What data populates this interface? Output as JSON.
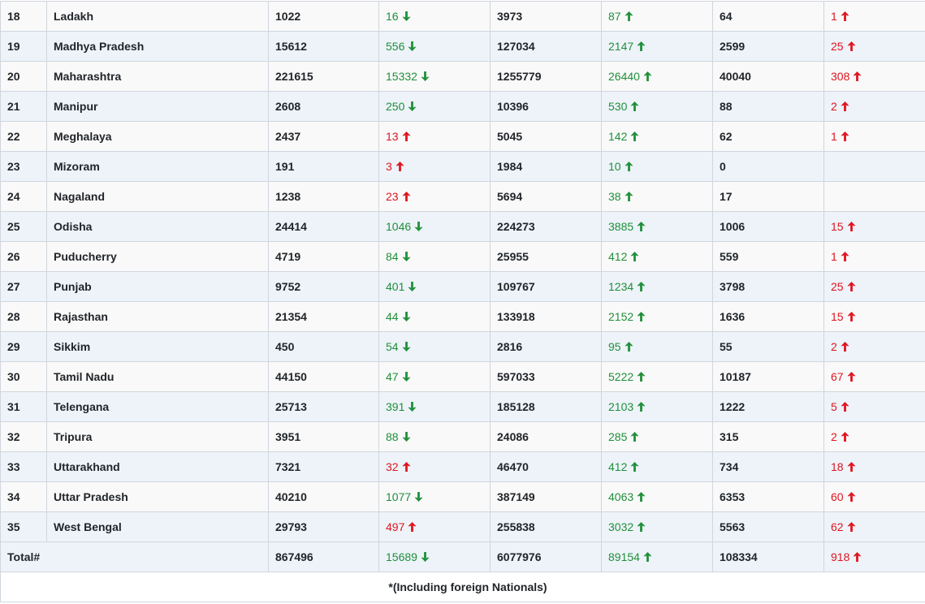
{
  "table": {
    "rows": [
      {
        "sno": "18",
        "state": "Ladakh",
        "active": "1022",
        "active_change": {
          "value": "16",
          "dir": "down"
        },
        "cured": "3973",
        "cured_change": {
          "value": "87",
          "dir": "up"
        },
        "deaths": "64",
        "deaths_change": {
          "value": "1",
          "dir": "up"
        }
      },
      {
        "sno": "19",
        "state": "Madhya Pradesh",
        "active": "15612",
        "active_change": {
          "value": "556",
          "dir": "down"
        },
        "cured": "127034",
        "cured_change": {
          "value": "2147",
          "dir": "up"
        },
        "deaths": "2599",
        "deaths_change": {
          "value": "25",
          "dir": "up"
        }
      },
      {
        "sno": "20",
        "state": "Maharashtra",
        "active": "221615",
        "active_change": {
          "value": "15332",
          "dir": "down"
        },
        "cured": "1255779",
        "cured_change": {
          "value": "26440",
          "dir": "up"
        },
        "deaths": "40040",
        "deaths_change": {
          "value": "308",
          "dir": "up"
        }
      },
      {
        "sno": "21",
        "state": "Manipur",
        "active": "2608",
        "active_change": {
          "value": "250",
          "dir": "down"
        },
        "cured": "10396",
        "cured_change": {
          "value": "530",
          "dir": "up"
        },
        "deaths": "88",
        "deaths_change": {
          "value": "2",
          "dir": "up"
        }
      },
      {
        "sno": "22",
        "state": "Meghalaya",
        "active": "2437",
        "active_change": {
          "value": "13",
          "dir": "up"
        },
        "cured": "5045",
        "cured_change": {
          "value": "142",
          "dir": "up"
        },
        "deaths": "62",
        "deaths_change": {
          "value": "1",
          "dir": "up"
        }
      },
      {
        "sno": "23",
        "state": "Mizoram",
        "active": "191",
        "active_change": {
          "value": "3",
          "dir": "up"
        },
        "cured": "1984",
        "cured_change": {
          "value": "10",
          "dir": "up"
        },
        "deaths": "0",
        "deaths_change": null
      },
      {
        "sno": "24",
        "state": "Nagaland",
        "active": "1238",
        "active_change": {
          "value": "23",
          "dir": "up"
        },
        "cured": "5694",
        "cured_change": {
          "value": "38",
          "dir": "up"
        },
        "deaths": "17",
        "deaths_change": null
      },
      {
        "sno": "25",
        "state": "Odisha",
        "active": "24414",
        "active_change": {
          "value": "1046",
          "dir": "down"
        },
        "cured": "224273",
        "cured_change": {
          "value": "3885",
          "dir": "up"
        },
        "deaths": "1006",
        "deaths_change": {
          "value": "15",
          "dir": "up"
        }
      },
      {
        "sno": "26",
        "state": "Puducherry",
        "active": "4719",
        "active_change": {
          "value": "84",
          "dir": "down"
        },
        "cured": "25955",
        "cured_change": {
          "value": "412",
          "dir": "up"
        },
        "deaths": "559",
        "deaths_change": {
          "value": "1",
          "dir": "up"
        }
      },
      {
        "sno": "27",
        "state": "Punjab",
        "active": "9752",
        "active_change": {
          "value": "401",
          "dir": "down"
        },
        "cured": "109767",
        "cured_change": {
          "value": "1234",
          "dir": "up"
        },
        "deaths": "3798",
        "deaths_change": {
          "value": "25",
          "dir": "up"
        }
      },
      {
        "sno": "28",
        "state": "Rajasthan",
        "active": "21354",
        "active_change": {
          "value": "44",
          "dir": "down"
        },
        "cured": "133918",
        "cured_change": {
          "value": "2152",
          "dir": "up"
        },
        "deaths": "1636",
        "deaths_change": {
          "value": "15",
          "dir": "up"
        }
      },
      {
        "sno": "29",
        "state": "Sikkim",
        "active": "450",
        "active_change": {
          "value": "54",
          "dir": "down"
        },
        "cured": "2816",
        "cured_change": {
          "value": "95",
          "dir": "up"
        },
        "deaths": "55",
        "deaths_change": {
          "value": "2",
          "dir": "up"
        }
      },
      {
        "sno": "30",
        "state": "Tamil Nadu",
        "active": "44150",
        "active_change": {
          "value": "47",
          "dir": "down"
        },
        "cured": "597033",
        "cured_change": {
          "value": "5222",
          "dir": "up"
        },
        "deaths": "10187",
        "deaths_change": {
          "value": "67",
          "dir": "up"
        }
      },
      {
        "sno": "31",
        "state": "Telengana",
        "active": "25713",
        "active_change": {
          "value": "391",
          "dir": "down"
        },
        "cured": "185128",
        "cured_change": {
          "value": "2103",
          "dir": "up"
        },
        "deaths": "1222",
        "deaths_change": {
          "value": "5",
          "dir": "up"
        }
      },
      {
        "sno": "32",
        "state": "Tripura",
        "active": "3951",
        "active_change": {
          "value": "88",
          "dir": "down"
        },
        "cured": "24086",
        "cured_change": {
          "value": "285",
          "dir": "up"
        },
        "deaths": "315",
        "deaths_change": {
          "value": "2",
          "dir": "up"
        }
      },
      {
        "sno": "33",
        "state": "Uttarakhand",
        "active": "7321",
        "active_change": {
          "value": "32",
          "dir": "up"
        },
        "cured": "46470",
        "cured_change": {
          "value": "412",
          "dir": "up"
        },
        "deaths": "734",
        "deaths_change": {
          "value": "18",
          "dir": "up"
        }
      },
      {
        "sno": "34",
        "state": "Uttar Pradesh",
        "active": "40210",
        "active_change": {
          "value": "1077",
          "dir": "down"
        },
        "cured": "387149",
        "cured_change": {
          "value": "4063",
          "dir": "up"
        },
        "deaths": "6353",
        "deaths_change": {
          "value": "60",
          "dir": "up"
        }
      },
      {
        "sno": "35",
        "state": "West Bengal",
        "active": "29793",
        "active_change": {
          "value": "497",
          "dir": "up"
        },
        "cured": "255838",
        "cured_change": {
          "value": "3032",
          "dir": "up"
        },
        "deaths": "5563",
        "deaths_change": {
          "value": "62",
          "dir": "up"
        }
      }
    ],
    "total": {
      "label": "Total#",
      "active": "867496",
      "active_change": {
        "value": "15689",
        "dir": "down"
      },
      "cured": "6077976",
      "cured_change": {
        "value": "89154",
        "dir": "up"
      },
      "deaths": "108334",
      "deaths_change": {
        "value": "918",
        "dir": "up"
      }
    },
    "footnote": "*(Including foreign Nationals)"
  },
  "colors": {
    "increase_bad": "#e0141e",
    "good": "#1f8f39",
    "border": "#cfd6dd"
  },
  "icons": {
    "up": "arrow-up-icon",
    "down": "arrow-down-icon"
  }
}
